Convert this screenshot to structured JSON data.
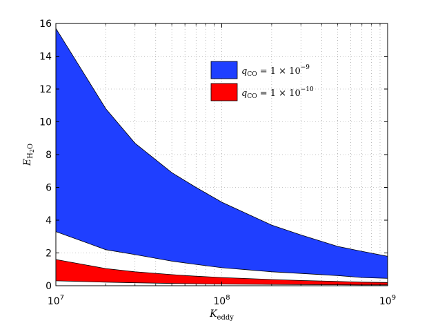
{
  "chart_data": {
    "type": "area",
    "x_scale": "log",
    "xlim": [
      10000000,
      1000000000
    ],
    "ylim": [
      0,
      16
    ],
    "grid": true,
    "legend_position": "top-right",
    "xlabel": {
      "main": "K",
      "sub": "eddy"
    },
    "ylabel": {
      "main": "E",
      "sub": "H",
      "subsub": "2",
      "subtail": "O"
    },
    "x_ticks": [
      {
        "value": 10000000,
        "base": "10",
        "exp": "7"
      },
      {
        "value": 100000000,
        "base": "10",
        "exp": "8"
      },
      {
        "value": 1000000000,
        "base": "10",
        "exp": "9"
      }
    ],
    "y_ticks": [
      0,
      2,
      4,
      6,
      8,
      10,
      12,
      14,
      16
    ],
    "series": [
      {
        "name": "q_CO = 1 × 10^-9",
        "legend": {
          "q": "q",
          "sub": "CO",
          "eq": " = 1 × 10",
          "exp": "−9"
        },
        "color": "#1f3fff",
        "x": [
          10000000,
          20000000,
          30000000,
          50000000,
          70000000,
          100000000,
          200000000,
          300000000,
          500000000,
          700000000,
          1000000000
        ],
        "upper": [
          15.7,
          10.8,
          8.7,
          6.9,
          6.0,
          5.1,
          3.7,
          3.1,
          2.4,
          2.1,
          1.8
        ],
        "lower": [
          3.3,
          2.2,
          1.9,
          1.5,
          1.3,
          1.1,
          0.85,
          0.75,
          0.62,
          0.5,
          0.45
        ]
      },
      {
        "name": "q_CO = 1 × 10^-10",
        "legend": {
          "q": "q",
          "sub": "CO",
          "eq": " = 1 × 10",
          "exp": "−10"
        },
        "color": "#ff0000",
        "x": [
          10000000,
          20000000,
          30000000,
          50000000,
          70000000,
          100000000,
          200000000,
          300000000,
          500000000,
          700000000,
          1000000000
        ],
        "upper": [
          1.6,
          1.05,
          0.85,
          0.68,
          0.58,
          0.5,
          0.38,
          0.32,
          0.26,
          0.22,
          0.2
        ],
        "lower": [
          0.3,
          0.22,
          0.18,
          0.14,
          0.12,
          0.1,
          0.08,
          0.07,
          0.06,
          0.05,
          0.05
        ]
      }
    ]
  }
}
